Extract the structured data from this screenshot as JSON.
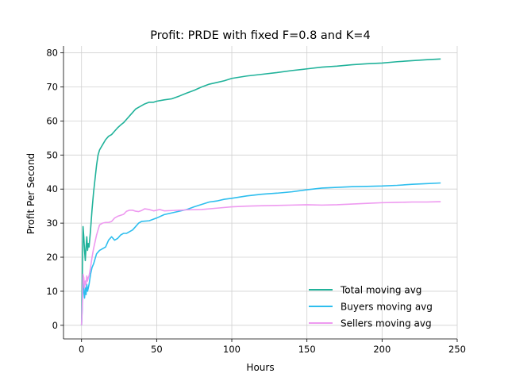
{
  "chart_data": {
    "type": "line",
    "title": "Profit: PRDE with fixed F=0.8 and K=4",
    "xlabel": "Hours",
    "ylabel": "Profit Per Second",
    "xlim": [
      -12,
      250
    ],
    "ylim": [
      -4,
      82
    ],
    "xticks": [
      0,
      50,
      100,
      150,
      200,
      250
    ],
    "yticks": [
      0,
      10,
      20,
      30,
      40,
      50,
      60,
      70,
      80
    ],
    "grid": true,
    "legend_position": "lower right",
    "series": [
      {
        "name": "Total moving avg",
        "color": "#20b29a",
        "points": [
          [
            0,
            0
          ],
          [
            0.5,
            14
          ],
          [
            1,
            29
          ],
          [
            1.5,
            26
          ],
          [
            2,
            22
          ],
          [
            2.5,
            19
          ],
          [
            3,
            23
          ],
          [
            3.5,
            26
          ],
          [
            4,
            22
          ],
          [
            4.5,
            24
          ],
          [
            5,
            23
          ],
          [
            6,
            28
          ],
          [
            7,
            34
          ],
          [
            8,
            39
          ],
          [
            9,
            43
          ],
          [
            10,
            47
          ],
          [
            11,
            50
          ],
          [
            12,
            51.5
          ],
          [
            14,
            53
          ],
          [
            16,
            54.5
          ],
          [
            18,
            55.5
          ],
          [
            20,
            56
          ],
          [
            22,
            57
          ],
          [
            24,
            58
          ],
          [
            26,
            58.8
          ],
          [
            28,
            59.5
          ],
          [
            30,
            60.5
          ],
          [
            32,
            61.5
          ],
          [
            34,
            62.5
          ],
          [
            36,
            63.5
          ],
          [
            38,
            64
          ],
          [
            40,
            64.5
          ],
          [
            42,
            65
          ],
          [
            45,
            65.5
          ],
          [
            48,
            65.5
          ],
          [
            50,
            65.8
          ],
          [
            55,
            66.2
          ],
          [
            60,
            66.5
          ],
          [
            65,
            67.3
          ],
          [
            70,
            68.2
          ],
          [
            75,
            69
          ],
          [
            80,
            70
          ],
          [
            85,
            70.8
          ],
          [
            90,
            71.3
          ],
          [
            95,
            71.8
          ],
          [
            100,
            72.5
          ],
          [
            110,
            73.2
          ],
          [
            120,
            73.7
          ],
          [
            130,
            74.2
          ],
          [
            140,
            74.8
          ],
          [
            150,
            75.3
          ],
          [
            160,
            75.8
          ],
          [
            170,
            76.1
          ],
          [
            180,
            76.5
          ],
          [
            190,
            76.8
          ],
          [
            200,
            77
          ],
          [
            210,
            77.4
          ],
          [
            220,
            77.7
          ],
          [
            230,
            78
          ],
          [
            239,
            78.2
          ]
        ]
      },
      {
        "name": "Buyers moving avg",
        "color": "#2ebeee",
        "points": [
          [
            0,
            0
          ],
          [
            0.5,
            5
          ],
          [
            1,
            14
          ],
          [
            1.5,
            10
          ],
          [
            2,
            8
          ],
          [
            2.5,
            11
          ],
          [
            3,
            9
          ],
          [
            3.5,
            12
          ],
          [
            4,
            10
          ],
          [
            4.5,
            11
          ],
          [
            5,
            12
          ],
          [
            6,
            15
          ],
          [
            7,
            17
          ],
          [
            8,
            18
          ],
          [
            9,
            19.5
          ],
          [
            10,
            21
          ],
          [
            12,
            22
          ],
          [
            14,
            22.5
          ],
          [
            16,
            23
          ],
          [
            18,
            25
          ],
          [
            20,
            26
          ],
          [
            22,
            25
          ],
          [
            24,
            25.5
          ],
          [
            26,
            26.5
          ],
          [
            28,
            27
          ],
          [
            30,
            27
          ],
          [
            32,
            27.5
          ],
          [
            34,
            28
          ],
          [
            36,
            29
          ],
          [
            38,
            30
          ],
          [
            40,
            30.5
          ],
          [
            45,
            30.7
          ],
          [
            50,
            31.5
          ],
          [
            55,
            32.5
          ],
          [
            60,
            33
          ],
          [
            65,
            33.5
          ],
          [
            70,
            34
          ],
          [
            75,
            34.8
          ],
          [
            80,
            35.5
          ],
          [
            85,
            36.2
          ],
          [
            90,
            36.5
          ],
          [
            95,
            37
          ],
          [
            100,
            37.3
          ],
          [
            110,
            38
          ],
          [
            120,
            38.5
          ],
          [
            130,
            38.8
          ],
          [
            140,
            39.2
          ],
          [
            150,
            39.8
          ],
          [
            160,
            40.3
          ],
          [
            170,
            40.5
          ],
          [
            180,
            40.7
          ],
          [
            190,
            40.8
          ],
          [
            200,
            40.9
          ],
          [
            210,
            41.1
          ],
          [
            220,
            41.4
          ],
          [
            230,
            41.6
          ],
          [
            239,
            41.8
          ]
        ]
      },
      {
        "name": "Sellers moving avg",
        "color": "#ee9af0",
        "points": [
          [
            0,
            0
          ],
          [
            0.5,
            6
          ],
          [
            1,
            15
          ],
          [
            1.5,
            14
          ],
          [
            2,
            11
          ],
          [
            2.5,
            13
          ],
          [
            3,
            12
          ],
          [
            3.5,
            14.5
          ],
          [
            4,
            13
          ],
          [
            4.5,
            14
          ],
          [
            5,
            14.5
          ],
          [
            6,
            17
          ],
          [
            7,
            20
          ],
          [
            8,
            22.5
          ],
          [
            9,
            24.5
          ],
          [
            10,
            26.5
          ],
          [
            11,
            28
          ],
          [
            12,
            29.5
          ],
          [
            14,
            30
          ],
          [
            16,
            30.2
          ],
          [
            18,
            30.2
          ],
          [
            20,
            30.5
          ],
          [
            22,
            31.5
          ],
          [
            24,
            32
          ],
          [
            26,
            32.3
          ],
          [
            28,
            32.6
          ],
          [
            30,
            33.5
          ],
          [
            32,
            33.8
          ],
          [
            34,
            33.8
          ],
          [
            36,
            33.5
          ],
          [
            38,
            33.4
          ],
          [
            40,
            33.7
          ],
          [
            42,
            34.2
          ],
          [
            45,
            34
          ],
          [
            48,
            33.6
          ],
          [
            50,
            33.8
          ],
          [
            52,
            34
          ],
          [
            55,
            33.6
          ],
          [
            60,
            33.7
          ],
          [
            65,
            33.8
          ],
          [
            70,
            33.9
          ],
          [
            80,
            34
          ],
          [
            90,
            34.4
          ],
          [
            100,
            34.8
          ],
          [
            110,
            35
          ],
          [
            120,
            35.1
          ],
          [
            130,
            35.2
          ],
          [
            140,
            35.3
          ],
          [
            150,
            35.4
          ],
          [
            160,
            35.3
          ],
          [
            170,
            35.4
          ],
          [
            180,
            35.6
          ],
          [
            190,
            35.8
          ],
          [
            200,
            36
          ],
          [
            210,
            36.1
          ],
          [
            220,
            36.2
          ],
          [
            230,
            36.2
          ],
          [
            239,
            36.3
          ]
        ]
      }
    ]
  }
}
